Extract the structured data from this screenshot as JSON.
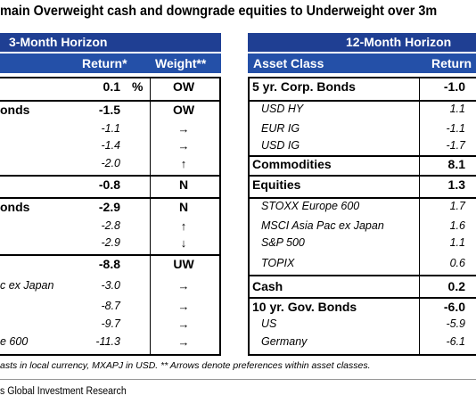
{
  "title": "main Overweight cash and downgrade equities to Underweight over 3m",
  "left_panel": {
    "horizon": "3-Month Horizon",
    "col_return": "Return*",
    "col_weight": "Weight**",
    "rows": [
      {
        "label": "",
        "ret": "0.1",
        "pct": "%",
        "weight": "OW",
        "style": "bold"
      },
      {
        "label": "onds",
        "ret": "-1.5",
        "pct": "",
        "weight": "OW",
        "style": "bold"
      },
      {
        "label": "",
        "ret": "-1.1",
        "pct": "",
        "weight": "→",
        "style": "italic"
      },
      {
        "label": "",
        "ret": "-1.4",
        "pct": "",
        "weight": "→",
        "style": "italic"
      },
      {
        "label": "",
        "ret": "-2.0",
        "pct": "",
        "weight": "↑",
        "style": "italic"
      },
      {
        "label": "",
        "ret": "-0.8",
        "pct": "",
        "weight": "N",
        "style": "bold"
      },
      {
        "label": "onds",
        "ret": "-2.9",
        "pct": "",
        "weight": "N",
        "style": "bold"
      },
      {
        "label": "",
        "ret": "-2.8",
        "pct": "",
        "weight": "↑",
        "style": "italic"
      },
      {
        "label": "",
        "ret": "-2.9",
        "pct": "",
        "weight": "↓",
        "style": "italic"
      },
      {
        "label": "",
        "ret": "-8.8",
        "pct": "",
        "weight": "UW",
        "style": "bold"
      },
      {
        "label": "c ex Japan",
        "ret": "-3.0",
        "pct": "",
        "weight": "→",
        "style": "italic"
      },
      {
        "label": "",
        "ret": "-8.7",
        "pct": "",
        "weight": "→",
        "style": "italic"
      },
      {
        "label": "",
        "ret": "-9.7",
        "pct": "",
        "weight": "→",
        "style": "italic"
      },
      {
        "label": "e 600",
        "ret": "-11.3",
        "pct": "",
        "weight": "→",
        "style": "italic"
      }
    ]
  },
  "right_panel": {
    "horizon": "12-Month Horizon",
    "col_asset": "Asset Class",
    "col_return": "Return",
    "rows": [
      {
        "label": "5 yr. Corp. Bonds",
        "ret": "-1.0",
        "style": "bold"
      },
      {
        "label": "USD HY",
        "ret": "1.1",
        "style": "italic"
      },
      {
        "label": "EUR IG",
        "ret": "-1.1",
        "style": "italic"
      },
      {
        "label": "USD IG",
        "ret": "-1.7",
        "style": "italic"
      },
      {
        "label": "Commodities",
        "ret": "8.1",
        "style": "bold"
      },
      {
        "label": "Equities",
        "ret": "1.3",
        "style": "bold"
      },
      {
        "label": "STOXX Europe 600",
        "ret": "1.7",
        "style": "italic"
      },
      {
        "label": "MSCI Asia Pac ex Japan",
        "ret": "1.6",
        "style": "italic"
      },
      {
        "label": "S&P 500",
        "ret": "1.1",
        "style": "italic"
      },
      {
        "label": "TOPIX",
        "ret": "0.6",
        "style": "italic"
      },
      {
        "label": "Cash",
        "ret": "0.2",
        "style": "bold"
      },
      {
        "label": "10 yr. Gov. Bonds",
        "ret": "-6.0",
        "style": "bold"
      },
      {
        "label": "US",
        "ret": "-5.9",
        "style": "italic"
      },
      {
        "label": "Germany",
        "ret": "-6.1",
        "style": "italic"
      }
    ]
  },
  "footnote": "asts in local currency, MXAPJ in USD. ** Arrows denote preferences within asset classes.",
  "source": "s Global Investment Research"
}
